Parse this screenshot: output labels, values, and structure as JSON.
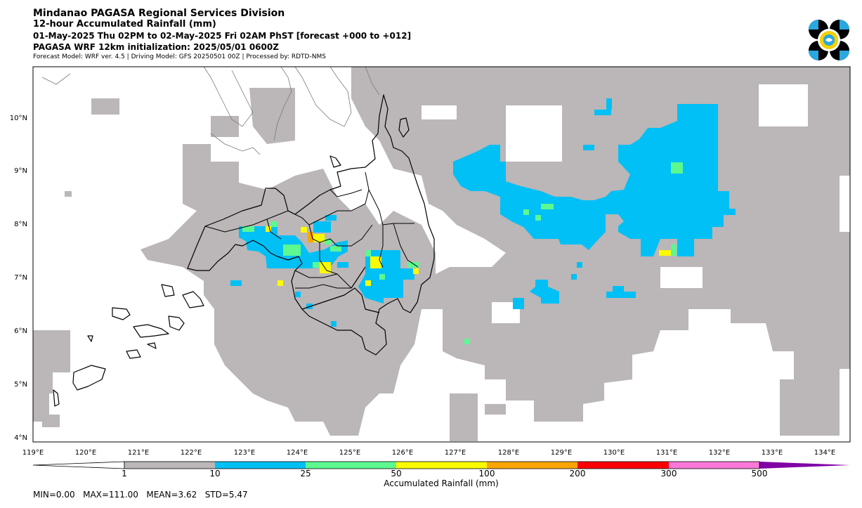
{
  "header": {
    "title": "Mindanao PAGASA Regional Services Division",
    "subtitle": "12-hour Accumulated Rainfall (mm)",
    "period": "01-May-2025 Thu 02PM to 02-May-2025 Fri 02AM PhST [forecast +000 to +012]",
    "model_init": "PAGASA WRF 12km initialization: 2025/05/01 0600Z",
    "model_info": "Forecast Model: WRF ver. 4.5 | Driving Model: GFS 20250501 00Z | Processed by: RDTD-NMS"
  },
  "map": {
    "extent": {
      "lon": [
        119,
        134.5
      ],
      "lat": [
        3.9,
        10.95
      ]
    },
    "lon_ticks": [
      "119°E",
      "120°E",
      "121°E",
      "122°E",
      "123°E",
      "124°E",
      "125°E",
      "126°E",
      "127°E",
      "128°E",
      "129°E",
      "130°E",
      "131°E",
      "132°E",
      "133°E",
      "134°E"
    ],
    "lat_ticks": [
      "10°N",
      "9°N",
      "8°N",
      "7°N",
      "6°N",
      "5°N",
      "4°N"
    ]
  },
  "colorbar": {
    "label": "Accumulated Rainfall (mm)",
    "bounds": [
      "1",
      "10",
      "25",
      "50",
      "100",
      "200",
      "300",
      "500"
    ],
    "colors": [
      "#bbb6b7",
      "#00c0f6",
      "#5cf890",
      "#fbfb00",
      "#fca500",
      "#fb0000",
      "#fb78d8",
      "#8000a4"
    ]
  },
  "stats": {
    "text": "MIN=0.00   MAX=111.00   MEAN=3.62   STD=5.47"
  }
}
